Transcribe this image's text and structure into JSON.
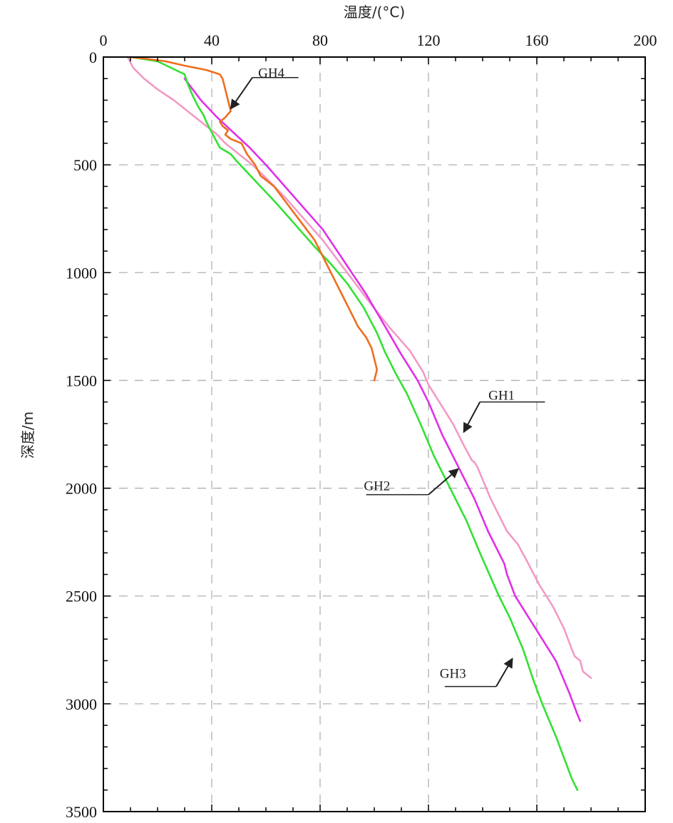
{
  "chart_data": {
    "type": "line",
    "xlabel": "温度/(°C)",
    "ylabel": "深度/m",
    "xlim": [
      0,
      200
    ],
    "ylim": [
      0,
      3500
    ],
    "y_inverted": true,
    "x_axis_position": "top",
    "x_ticks": [
      0,
      40,
      80,
      120,
      160,
      200
    ],
    "y_ticks": [
      0,
      500,
      1000,
      1500,
      2000,
      2500,
      3000,
      3500
    ],
    "grid": true,
    "grid_style": "dashed",
    "legend": "none",
    "series": [
      {
        "name": "GH1",
        "color": "#f29ac6",
        "points": [
          [
            9,
            0
          ],
          [
            11,
            50
          ],
          [
            15,
            100
          ],
          [
            20,
            150
          ],
          [
            26,
            200
          ],
          [
            32,
            260
          ],
          [
            38,
            320
          ],
          [
            42,
            360
          ],
          [
            45,
            400
          ],
          [
            50,
            450
          ],
          [
            55,
            500
          ],
          [
            60,
            560
          ],
          [
            67,
            650
          ],
          [
            74,
            750
          ],
          [
            81,
            850
          ],
          [
            87,
            950
          ],
          [
            93,
            1050
          ],
          [
            99,
            1150
          ],
          [
            106,
            1260
          ],
          [
            113,
            1360
          ],
          [
            116,
            1420
          ],
          [
            118,
            1460
          ],
          [
            120,
            1520
          ],
          [
            124,
            1600
          ],
          [
            129,
            1700
          ],
          [
            133,
            1800
          ],
          [
            136,
            1870
          ],
          [
            137,
            1880
          ],
          [
            138,
            1900
          ],
          [
            143,
            2050
          ],
          [
            149,
            2200
          ],
          [
            153,
            2260
          ],
          [
            156,
            2330
          ],
          [
            161,
            2450
          ],
          [
            166,
            2550
          ],
          [
            170,
            2650
          ],
          [
            173,
            2750
          ],
          [
            174,
            2780
          ],
          [
            176,
            2800
          ],
          [
            177,
            2850
          ],
          [
            180,
            2880
          ]
        ]
      },
      {
        "name": "GH2",
        "color": "#e030e8",
        "points": [
          [
            30,
            100
          ],
          [
            36,
            200
          ],
          [
            42,
            280
          ],
          [
            48,
            350
          ],
          [
            54,
            420
          ],
          [
            60,
            500
          ],
          [
            67,
            600
          ],
          [
            74,
            700
          ],
          [
            81,
            800
          ],
          [
            89,
            950
          ],
          [
            97,
            1100
          ],
          [
            104,
            1250
          ],
          [
            110,
            1380
          ],
          [
            116,
            1500
          ],
          [
            120,
            1600
          ],
          [
            125,
            1750
          ],
          [
            131,
            1900
          ],
          [
            137,
            2050
          ],
          [
            142,
            2200
          ],
          [
            146,
            2300
          ],
          [
            148,
            2350
          ],
          [
            149,
            2400
          ],
          [
            152,
            2500
          ],
          [
            157,
            2600
          ],
          [
            162,
            2700
          ],
          [
            167,
            2800
          ],
          [
            172,
            2950
          ],
          [
            175,
            3050
          ],
          [
            176,
            3080
          ]
        ]
      },
      {
        "name": "GH3",
        "color": "#33e133",
        "points": [
          [
            10,
            0
          ],
          [
            20,
            20
          ],
          [
            30,
            80
          ],
          [
            31,
            120
          ],
          [
            33,
            180
          ],
          [
            35,
            230
          ],
          [
            37,
            270
          ],
          [
            38,
            300
          ],
          [
            40,
            350
          ],
          [
            43,
            420
          ],
          [
            47,
            450
          ],
          [
            49,
            480
          ],
          [
            52,
            520
          ],
          [
            58,
            600
          ],
          [
            64,
            680
          ],
          [
            71,
            780
          ],
          [
            78,
            880
          ],
          [
            84,
            960
          ],
          [
            90,
            1050
          ],
          [
            96,
            1160
          ],
          [
            101,
            1280
          ],
          [
            104,
            1370
          ],
          [
            108,
            1470
          ],
          [
            112,
            1560
          ],
          [
            117,
            1700
          ],
          [
            122,
            1850
          ],
          [
            128,
            2000
          ],
          [
            134,
            2150
          ],
          [
            139,
            2300
          ],
          [
            146,
            2500
          ],
          [
            150,
            2600
          ],
          [
            155,
            2750
          ],
          [
            159,
            2900
          ],
          [
            162,
            3000
          ],
          [
            167,
            3150
          ],
          [
            170,
            3250
          ],
          [
            173,
            3350
          ],
          [
            175,
            3400
          ]
        ]
      },
      {
        "name": "GH4",
        "color": "#ee6e1e",
        "points": [
          [
            10,
            0
          ],
          [
            17,
            10
          ],
          [
            23,
            20
          ],
          [
            30,
            40
          ],
          [
            38,
            60
          ],
          [
            43,
            80
          ],
          [
            44,
            100
          ],
          [
            45,
            150
          ],
          [
            46,
            200
          ],
          [
            47,
            250
          ],
          [
            45,
            280
          ],
          [
            43,
            300
          ],
          [
            44,
            320
          ],
          [
            46,
            340
          ],
          [
            45,
            360
          ],
          [
            47,
            380
          ],
          [
            51,
            400
          ],
          [
            53,
            450
          ],
          [
            56,
            500
          ],
          [
            58,
            550
          ],
          [
            63,
            600
          ],
          [
            66,
            650
          ],
          [
            69,
            700
          ],
          [
            72,
            750
          ],
          [
            75,
            800
          ],
          [
            78,
            850
          ],
          [
            80,
            900
          ],
          [
            82,
            950
          ],
          [
            84,
            1000
          ],
          [
            86,
            1050
          ],
          [
            88,
            1100
          ],
          [
            90,
            1150
          ],
          [
            92,
            1200
          ],
          [
            94,
            1250
          ],
          [
            97,
            1300
          ],
          [
            99,
            1350
          ],
          [
            100,
            1400
          ],
          [
            101,
            1450
          ],
          [
            100,
            1500
          ]
        ]
      }
    ],
    "annotations": [
      {
        "label": "GH4",
        "text_at": [
          62,
          95
        ],
        "line_to": [
          72,
          95
        ],
        "arrow_from": [
          55,
          95
        ],
        "arrow_to": [
          47,
          240
        ]
      },
      {
        "label": "GH1",
        "text_at": [
          147,
          1590
        ],
        "line_to": [
          163,
          1600
        ],
        "arrow_from": [
          139,
          1600
        ],
        "arrow_to": [
          133,
          1740
        ]
      },
      {
        "label": "GH2",
        "text_at": [
          101,
          2010
        ],
        "line_to": [
          97,
          2030
        ],
        "arrow_from": [
          120,
          2030
        ],
        "arrow_to": [
          131,
          1910
        ]
      },
      {
        "label": "GH3",
        "text_at": [
          129,
          2880
        ],
        "line_to": [
          126,
          2920
        ],
        "arrow_from": [
          145,
          2920
        ],
        "arrow_to": [
          151,
          2790
        ]
      }
    ]
  }
}
